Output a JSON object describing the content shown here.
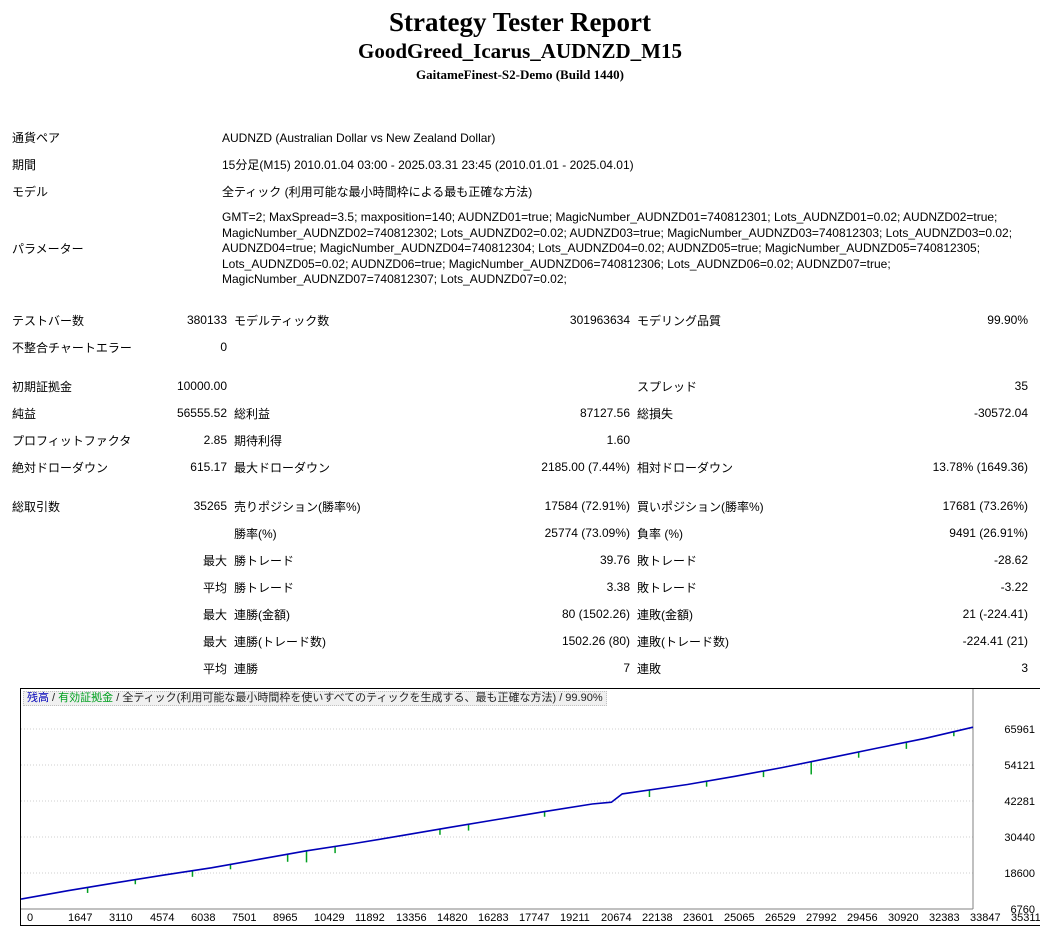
{
  "header": {
    "title": "Strategy Tester Report",
    "subtitle": "GoodGreed_Icarus_AUDNZD_M15",
    "build": "GaitameFinest-S2-Demo (Build 1440)"
  },
  "info": {
    "rows": [
      {
        "label": "通貨ペア",
        "value": "AUDNZD (Australian Dollar vs New Zealand Dollar)"
      },
      {
        "label": "期間",
        "value": "15分足(M15) 2010.01.04 03:00 - 2025.03.31 23:45 (2010.01.01 - 2025.04.01)"
      },
      {
        "label": "モデル",
        "value": "全ティック (利用可能な最小時間枠による最も正確な方法)"
      },
      {
        "label": "パラメーター",
        "value": "GMT=2; MaxSpread=3.5; maxposition=140; AUDNZD01=true; MagicNumber_AUDNZD01=740812301; Lots_AUDNZD01=0.02; AUDNZD02=true; MagicNumber_AUDNZD02=740812302; Lots_AUDNZD02=0.02; AUDNZD03=true; MagicNumber_AUDNZD03=740812303; Lots_AUDNZD03=0.02; AUDNZD04=true; MagicNumber_AUDNZD04=740812304; Lots_AUDNZD04=0.02; AUDNZD05=true; MagicNumber_AUDNZD05=740812305; Lots_AUDNZD05=0.02; AUDNZD06=true; MagicNumber_AUDNZD06=740812306; Lots_AUDNZD06=0.02; AUDNZD07=true; MagicNumber_AUDNZD07=740812307; Lots_AUDNZD07=0.02;"
      }
    ]
  },
  "stats": {
    "rows": [
      {
        "cells": [
          "テストバー数",
          "380133",
          "モデルティック数",
          "301963634",
          "モデリング品質",
          "99.90%"
        ]
      },
      {
        "cells": [
          "不整合チャートエラー",
          "0",
          "",
          "",
          "",
          ""
        ]
      },
      {
        "gap": true,
        "cells": [
          "初期証拠金",
          "10000.00",
          "",
          "",
          "スプレッド",
          "35"
        ]
      },
      {
        "cells": [
          "純益",
          "56555.52",
          "総利益",
          "87127.56",
          "総損失",
          "-30572.04"
        ]
      },
      {
        "cells": [
          "プロフィットファクタ",
          "2.85",
          "期待利得",
          "1.60",
          "",
          ""
        ]
      },
      {
        "cells": [
          "絶対ドローダウン",
          "615.17",
          "最大ドローダウン",
          "2185.00 (7.44%)",
          "相対ドローダウン",
          "13.78% (1649.36)"
        ]
      },
      {
        "gap": true,
        "cells": [
          "総取引数",
          "35265",
          "売りポジション(勝率%)",
          "17584 (72.91%)",
          "買いポジション(勝率%)",
          "17681 (73.26%)"
        ]
      },
      {
        "cells": [
          "",
          "",
          "勝率(%)",
          "25774 (73.09%)",
          "負率 (%)",
          "9491 (26.91%)"
        ]
      },
      {
        "cells": [
          "",
          "最大",
          "勝トレード",
          "39.76",
          "敗トレード",
          "-28.62"
        ]
      },
      {
        "cells": [
          "",
          "平均",
          "勝トレード",
          "3.38",
          "敗トレード",
          "-3.22"
        ]
      },
      {
        "cells": [
          "",
          "最大",
          "連勝(金額)",
          "80 (1502.26)",
          "連敗(金額)",
          "21 (-224.41)"
        ]
      },
      {
        "cells": [
          "",
          "最大",
          "連勝(トレード数)",
          "1502.26 (80)",
          "連敗(トレード数)",
          "-224.41 (21)"
        ]
      },
      {
        "cells": [
          "",
          "平均",
          "連勝",
          "7",
          "連敗",
          "3"
        ]
      }
    ]
  },
  "chart_data": {
    "type": "line",
    "title": "",
    "xlabel": "",
    "ylabel": "",
    "legend": {
      "balance_label": "残高",
      "sep": " / ",
      "equity_label": "有効証拠金",
      "model_tail": " / 全ティック(利用可能な最小時間枠を使いすべてのティックを生成する、最も正確な方法) / 99.90%"
    },
    "initial_deposit": 10000.0,
    "final_balance": 66555.52,
    "x_max": 35311,
    "y_ticks": [
      65961,
      54121,
      42281,
      30440,
      18600,
      6760
    ],
    "x_ticks": [
      "0",
      "1647",
      "3110",
      "4574",
      "6038",
      "7501",
      "8965",
      "10429",
      "11892",
      "13356",
      "14820",
      "16283",
      "17747",
      "19211",
      "20674",
      "22138",
      "23601",
      "25065",
      "26529",
      "27992",
      "29456",
      "30920",
      "32383",
      "33847",
      "35311"
    ],
    "series": [
      {
        "name": "残高",
        "color": "#0000b8",
        "points": [
          [
            0,
            10000
          ],
          [
            1765,
            12800
          ],
          [
            3531,
            15400
          ],
          [
            5297,
            17900
          ],
          [
            7062,
            20300
          ],
          [
            8828,
            23100
          ],
          [
            10593,
            25900
          ],
          [
            12359,
            28300
          ],
          [
            14124,
            30900
          ],
          [
            15890,
            33600
          ],
          [
            17656,
            36200
          ],
          [
            19421,
            38800
          ],
          [
            21187,
            41300
          ],
          [
            21900,
            41900
          ],
          [
            22300,
            44600
          ],
          [
            24718,
            47700
          ],
          [
            26483,
            50400
          ],
          [
            28249,
            53300
          ],
          [
            30014,
            56500
          ],
          [
            31780,
            59700
          ],
          [
            33545,
            62900
          ],
          [
            35311,
            66555
          ]
        ]
      },
      {
        "name": "有効証拠金",
        "color": "#00a020",
        "drawdowns": [
          [
            2470,
            1800
          ],
          [
            4240,
            1500
          ],
          [
            6360,
            2000
          ],
          [
            7770,
            1600
          ],
          [
            9890,
            2500
          ],
          [
            10590,
            3800
          ],
          [
            11650,
            2200
          ],
          [
            15540,
            1900
          ],
          [
            16600,
            2100
          ],
          [
            19420,
            1700
          ],
          [
            23310,
            2300
          ],
          [
            25430,
            1800
          ],
          [
            27540,
            2000
          ],
          [
            29310,
            4200
          ],
          [
            31070,
            1900
          ],
          [
            32840,
            2200
          ],
          [
            34600,
            1500
          ]
        ]
      }
    ],
    "grid_color": "#cfcfcf",
    "axis_color": "#808080"
  }
}
